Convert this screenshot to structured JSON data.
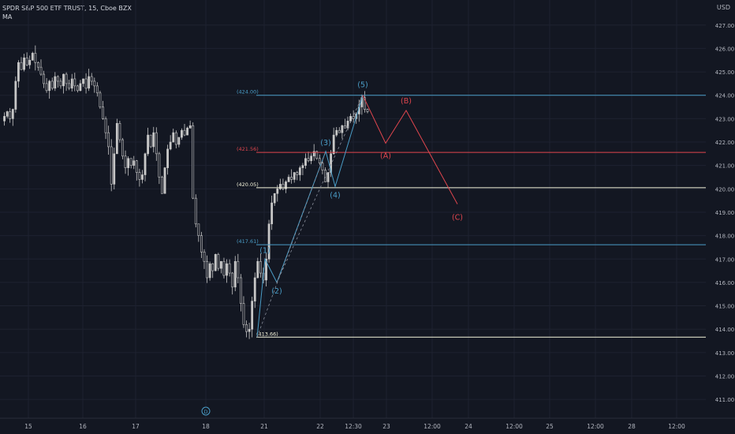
{
  "header": {
    "symbol": "SPDR S&P 500 ETF TRUST, 15, Cboe BZX",
    "indicator": "MA"
  },
  "currency_label": "USD",
  "colors": {
    "background": "#131722",
    "grid": "#1e2230",
    "axis_text": "#b2b5be",
    "candle_up": "#c8c8c8",
    "candle_down": "#c8c8c8",
    "impulse_wave": "#4a9dc7",
    "corrective_wave": "#e0464e",
    "level_white": "#f5f5dc"
  },
  "chart_data": {
    "type": "candlestick",
    "ylim": [
      410.6,
      427.6
    ],
    "y_ticks": [
      "411.00",
      "412.00",
      "413.00",
      "414.00",
      "415.00",
      "416.00",
      "417.00",
      "418.00",
      "419.00",
      "420.00",
      "421.00",
      "422.00",
      "423.00",
      "424.00",
      "425.00",
      "426.00",
      "427.00"
    ],
    "x_ticks": [
      "15",
      "16",
      "17",
      "18",
      "21",
      "22",
      "12:30",
      "23",
      "12:00",
      "24",
      "12:00",
      "25",
      "12:00",
      "28",
      "12:00"
    ],
    "close_path": [
      422.9,
      423.1,
      423.3,
      423.0,
      423.4,
      424.6,
      425.4,
      425.1,
      425.6,
      425.3,
      425.5,
      425.8,
      425.4,
      425.2,
      424.9,
      424.5,
      424.2,
      424.6,
      424.3,
      424.8,
      424.6,
      424.4,
      424.9,
      424.5,
      424.3,
      424.7,
      424.4,
      424.2,
      424.5,
      424.7,
      424.3,
      424.8,
      424.6,
      424.4,
      424.1,
      423.5,
      423.0,
      422.4,
      421.8,
      420.2,
      421.5,
      422.8,
      422.1,
      421.4,
      420.9,
      421.3,
      421.0,
      421.2,
      420.7,
      420.4,
      420.6,
      421.5,
      422.3,
      421.8,
      422.4,
      421.5,
      420.5,
      419.8,
      420.9,
      421.7,
      422.0,
      422.4,
      421.9,
      422.2,
      422.5,
      422.3,
      422.6,
      422.7,
      419.6,
      418.5,
      418.0,
      417.3,
      416.9,
      416.2,
      416.8,
      416.5,
      417.2,
      416.6,
      416.9,
      416.3,
      416.8,
      416.4,
      415.8,
      416.9,
      416.2,
      415.1,
      414.2,
      413.9,
      414.0,
      415.2,
      416.2,
      416.9,
      416.4,
      416.1,
      417.0,
      418.5,
      419.4,
      419.8,
      420.0,
      420.2,
      420.0,
      420.3,
      420.5,
      420.4,
      420.7,
      420.6,
      420.9,
      421.0,
      421.3,
      421.2,
      421.4,
      421.6,
      421.3,
      421.1,
      420.8,
      420.3,
      420.7,
      421.5,
      422.3,
      422.5,
      422.4,
      422.7,
      422.6,
      422.9,
      423.1,
      423.0,
      423.2,
      423.5,
      423.9,
      423.4,
      423.3
    ],
    "levels": [
      {
        "label": "(424.00)",
        "value": 424.0,
        "color": "impulse_wave"
      },
      {
        "label": "(421.56)",
        "value": 421.56,
        "color": "corrective_wave"
      },
      {
        "label": "(420.05)",
        "value": 420.05,
        "color": "level_white"
      },
      {
        "label": "(417.61)",
        "value": 417.61,
        "color": "impulse_wave"
      },
      {
        "label": "(413.66)",
        "value": 413.66,
        "color": "level_white"
      }
    ],
    "impulse_waves": [
      {
        "label": "(1)",
        "value": 417.0
      },
      {
        "label": "(2)",
        "value": 416.0
      },
      {
        "label": "(3)",
        "value": 421.6
      },
      {
        "label": "(4)",
        "value": 420.1
      },
      {
        "label": "(5)",
        "value": 424.0
      }
    ],
    "impulse_origin": 413.66,
    "corrective_waves": [
      {
        "label": "(A)",
        "value": 421.95
      },
      {
        "label": "(B)",
        "value": 423.35
      },
      {
        "label": "(C)",
        "value": 419.35
      }
    ],
    "event_marker": "D"
  }
}
